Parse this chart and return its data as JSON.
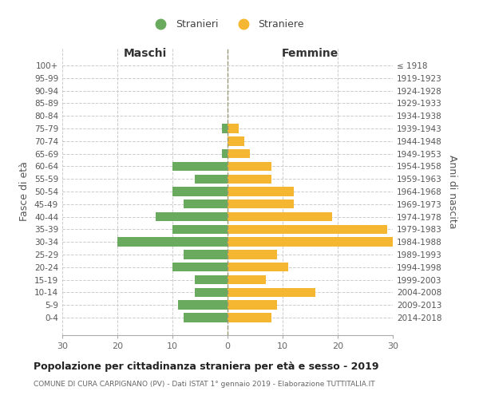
{
  "age_groups": [
    "0-4",
    "5-9",
    "10-14",
    "15-19",
    "20-24",
    "25-29",
    "30-34",
    "35-39",
    "40-44",
    "45-49",
    "50-54",
    "55-59",
    "60-64",
    "65-69",
    "70-74",
    "75-79",
    "80-84",
    "85-89",
    "90-94",
    "95-99",
    "100+"
  ],
  "birth_years": [
    "2014-2018",
    "2009-2013",
    "2004-2008",
    "1999-2003",
    "1994-1998",
    "1989-1993",
    "1984-1988",
    "1979-1983",
    "1974-1978",
    "1969-1973",
    "1964-1968",
    "1959-1963",
    "1954-1958",
    "1949-1953",
    "1944-1948",
    "1939-1943",
    "1934-1938",
    "1929-1933",
    "1924-1928",
    "1919-1923",
    "≤ 1918"
  ],
  "males": [
    8,
    9,
    6,
    6,
    10,
    8,
    20,
    10,
    13,
    8,
    10,
    6,
    10,
    1,
    0,
    1,
    0,
    0,
    0,
    0,
    0
  ],
  "females": [
    8,
    9,
    16,
    7,
    11,
    9,
    30,
    29,
    19,
    12,
    12,
    8,
    8,
    4,
    3,
    2,
    0,
    0,
    0,
    0,
    0
  ],
  "male_color": "#6aaa5e",
  "female_color": "#f5b731",
  "background_color": "#ffffff",
  "grid_color": "#cccccc",
  "title": "Popolazione per cittadinanza straniera per età e sesso - 2019",
  "subtitle": "COMUNE DI CURA CARPIGNANO (PV) - Dati ISTAT 1° gennaio 2019 - Elaborazione TUTTITALIA.IT",
  "ylabel_left": "Fasce di età",
  "ylabel_right": "Anni di nascita",
  "xlabel_left": "Maschi",
  "xlabel_right": "Femmine",
  "legend_stranieri": "Stranieri",
  "legend_straniere": "Straniere",
  "xlim": 30
}
